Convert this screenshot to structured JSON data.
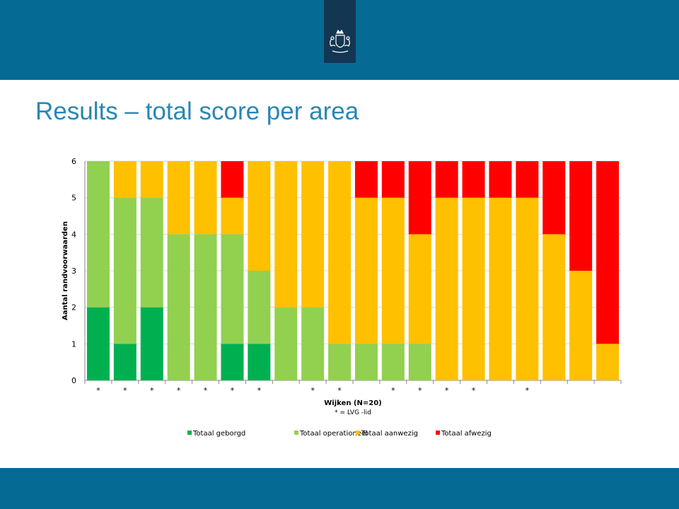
{
  "slide": {
    "title": "Results – total score per area"
  },
  "colors": {
    "band": "#066b94",
    "logo_box": "#133653",
    "title": "#2a86b5"
  },
  "icons": {
    "logo": "royal-coat-of-arms-icon"
  },
  "chart_data": {
    "type": "bar",
    "stacked": true,
    "ylabel": "Aantal randvoorwaarden",
    "xlabel": "Wijken (N=20)",
    "xnote": "* = LVG -lid",
    "ylim": [
      0,
      6
    ],
    "yticks": [
      0,
      1,
      2,
      3,
      4,
      5,
      6
    ],
    "grid": true,
    "legend_position": "bottom",
    "categories": [
      "*",
      "*",
      "*",
      "*",
      "*",
      "*",
      "*",
      "",
      "*",
      "*",
      "",
      "*",
      "*",
      "*",
      "*",
      "",
      "*",
      "",
      "",
      ""
    ],
    "series": [
      {
        "name": "Totaal geborgd",
        "color": "#00b050",
        "values": [
          2,
          1,
          2,
          0,
          0,
          1,
          1,
          0,
          0,
          0,
          0,
          0,
          0,
          0,
          0,
          0,
          0,
          0,
          0,
          0
        ]
      },
      {
        "name": "Totaal operationeel",
        "color": "#92d050",
        "values": [
          4,
          4,
          3,
          4,
          4,
          3,
          2,
          2,
          2,
          1,
          1,
          1,
          1,
          0,
          0,
          0,
          0,
          0,
          0,
          0
        ]
      },
      {
        "name": "Totaal aanwezig",
        "color": "#ffc000",
        "values": [
          0,
          1,
          1,
          2,
          2,
          1,
          3,
          4,
          4,
          5,
          4,
          4,
          3,
          5,
          5,
          5,
          5,
          4,
          3,
          1
        ]
      },
      {
        "name": "Totaal afwezig",
        "color": "#ff0000",
        "values": [
          0,
          0,
          0,
          0,
          0,
          1,
          0,
          0,
          0,
          0,
          1,
          1,
          2,
          1,
          1,
          1,
          1,
          2,
          3,
          5
        ]
      }
    ]
  }
}
